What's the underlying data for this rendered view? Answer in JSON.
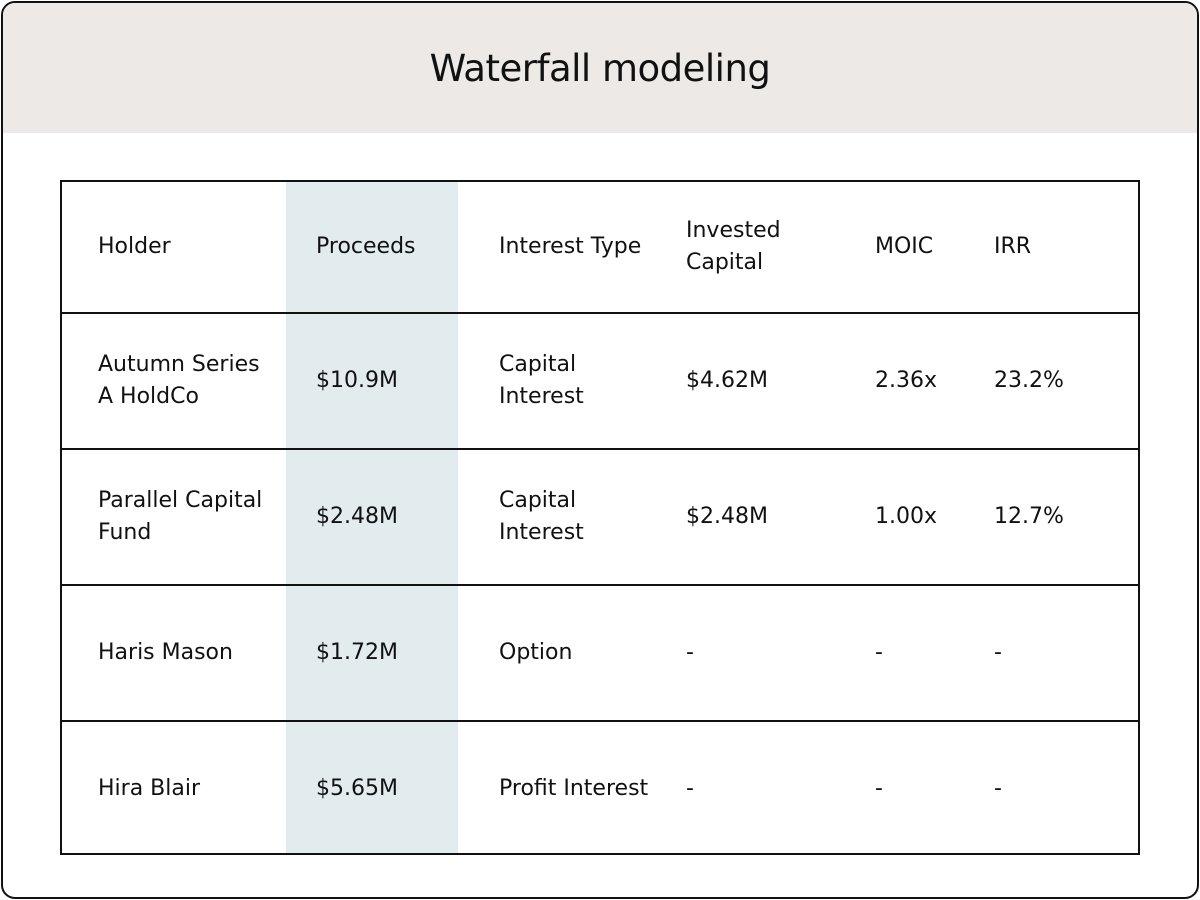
{
  "page": {
    "title": "Waterfall modeling"
  },
  "colors": {
    "header_bg": "#ece9e6",
    "highlight_column_bg": "#e2ecef",
    "border": "#111111",
    "text": "#111111"
  },
  "table": {
    "columns": {
      "holder": "Holder",
      "proceeds": "Proceeds",
      "interest_type": "Interest Type",
      "invested_capital": "Invested Capital",
      "moic": "MOIC",
      "irr": "IRR"
    },
    "rows": [
      {
        "holder": "Autumn Series A HoldCo",
        "proceeds": "$10.9M",
        "interest_type": "Capital Interest",
        "invested_capital": "$4.62M",
        "moic": "2.36x",
        "irr": "23.2%"
      },
      {
        "holder": "Parallel Capital Fund",
        "proceeds": "$2.48M",
        "interest_type": "Capital Interest",
        "invested_capital": "$2.48M",
        "moic": "1.00x",
        "irr": "12.7%"
      },
      {
        "holder": "Haris Mason",
        "proceeds": "$1.72M",
        "interest_type": "Option",
        "invested_capital": "-",
        "moic": "-",
        "irr": "-"
      },
      {
        "holder": "Hira Blair",
        "proceeds": "$5.65M",
        "interest_type": "Profit Interest",
        "invested_capital": "-",
        "moic": "-",
        "irr": "-"
      }
    ]
  }
}
